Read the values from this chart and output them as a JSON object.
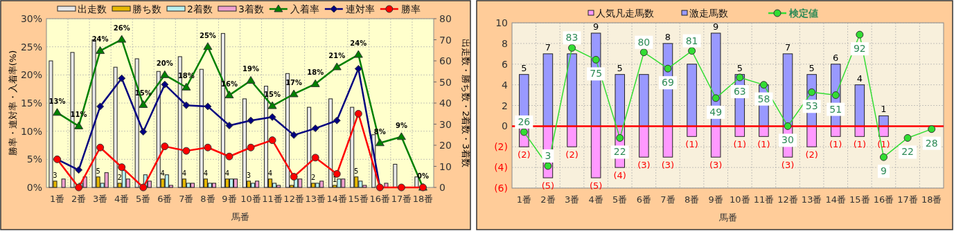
{
  "chart_data": [
    {
      "type": "bar",
      "xlabel": "馬番",
      "ylabel": "勝率・連対率・入着率(%)",
      "y2label": "出走数・勝ち数・2着数・3着数",
      "categories": [
        "1番",
        "2番",
        "3番",
        "4番",
        "5番",
        "6番",
        "7番",
        "8番",
        "9番",
        "10番",
        "11番",
        "12番",
        "13番",
        "14番",
        "15番",
        "16番",
        "17番",
        "18番"
      ],
      "series": [
        {
          "name": "出走数",
          "color": "#e8e8e8",
          "axis": "y2",
          "values": [
            60,
            64,
            70,
            57,
            61,
            55,
            62,
            56,
            73,
            42,
            48,
            54,
            38,
            42,
            38,
            25,
            11,
            5
          ]
        },
        {
          "name": "勝ち数",
          "color": "#e6b800",
          "axis": "y2",
          "values": [
            3,
            0,
            5,
            2,
            0,
            4,
            4,
            4,
            4,
            3,
            4,
            1,
            2,
            1,
            5,
            0,
            0,
            0
          ],
          "value_labels": [
            "3",
            null,
            "5",
            "2",
            null,
            "4",
            "4",
            "4",
            "4",
            "3",
            "4",
            null,
            "2",
            "1",
            "5",
            null,
            null,
            null
          ]
        },
        {
          "name": "2着数",
          "color": "#b8f0f0",
          "axis": "y2",
          "values": [
            0,
            2,
            2,
            8,
            6,
            6,
            2,
            2,
            4,
            2,
            2,
            4,
            2,
            4,
            3,
            0,
            0,
            0
          ]
        },
        {
          "name": "3着数",
          "color": "#f0a0d0",
          "axis": "y2",
          "values": [
            4,
            5,
            7,
            4,
            3,
            1,
            2,
            2,
            4,
            3,
            1,
            4,
            3,
            4,
            1,
            2,
            0,
            0
          ]
        },
        {
          "name": "入着率",
          "type": "line",
          "color": "#008000",
          "marker": "triangle",
          "values": [
            13.3,
            10.9,
            24.3,
            26.3,
            14.7,
            20.0,
            17.8,
            25.0,
            16.4,
            19.0,
            14.5,
            16.6,
            18.4,
            21.4,
            23.6,
            7.9,
            9.0,
            0
          ],
          "value_labels": [
            "13%",
            "11%",
            "24%",
            "26%",
            "15%",
            "20%",
            "18%",
            "25%",
            "16%",
            "19%",
            "15%",
            "17%",
            "18%",
            "21%",
            "24%",
            "8%",
            "9%",
            "0%"
          ]
        },
        {
          "name": "連対率",
          "type": "line",
          "color": "#000080",
          "marker": "diamond",
          "values": [
            5.0,
            3.1,
            14.4,
            19.4,
            9.9,
            18.3,
            14.6,
            14.4,
            11.0,
            11.9,
            12.5,
            9.3,
            10.5,
            11.9,
            21.1,
            0,
            null,
            null
          ]
        },
        {
          "name": "勝率",
          "type": "line",
          "color": "#ff0000",
          "marker": "circle",
          "values": [
            5.0,
            0,
            7.1,
            3.6,
            0,
            7.3,
            6.5,
            7.1,
            5.5,
            7.1,
            8.4,
            1.9,
            5.3,
            2.4,
            13.1,
            0,
            0,
            0
          ]
        }
      ],
      "ylim": [
        0,
        30
      ],
      "yticks": [
        {
          "value": 0,
          "label": "0%"
        },
        {
          "value": 5,
          "label": "5%"
        },
        {
          "value": 10,
          "label": "10%"
        },
        {
          "value": 15,
          "label": "15%"
        },
        {
          "value": 20,
          "label": "20%"
        },
        {
          "value": 25,
          "label": "25%"
        },
        {
          "value": 30,
          "label": "30%"
        }
      ],
      "y2lim": [
        0,
        80
      ],
      "y2ticks": [
        0,
        10,
        20,
        30,
        40,
        50,
        60,
        70,
        80
      ],
      "grid": true,
      "legend": "top"
    },
    {
      "type": "bar",
      "stacked": true,
      "xlabel": "馬番",
      "categories": [
        "1番",
        "2番",
        "3番",
        "4番",
        "5番",
        "6番",
        "7番",
        "8番",
        "9番",
        "10番",
        "11番",
        "12番",
        "13番",
        "14番",
        "15番",
        "16番",
        "17番",
        "18番"
      ],
      "series": [
        {
          "name": "人気凡走馬数",
          "color": "#ff99ff",
          "values": [
            -2,
            -5,
            -2,
            -5,
            -4,
            -3,
            -3,
            -1,
            -3,
            -1,
            -1,
            -3,
            -2,
            -1,
            -1,
            -1,
            0,
            0
          ],
          "value_labels": [
            "(2)",
            "(5)",
            "(2)",
            "(5)",
            "(4)",
            "(3)",
            "(3)",
            "(1)",
            "(3)",
            "(1)",
            "(1)",
            "(3)",
            "(2)",
            "(1)",
            "(1)",
            "(1)",
            null,
            null
          ]
        },
        {
          "name": "激走馬数",
          "color": "#9999ff",
          "values": [
            5,
            7,
            7,
            9,
            5,
            5,
            8,
            6,
            9,
            5,
            4,
            7,
            5,
            6,
            4,
            1,
            0,
            0
          ],
          "value_labels": [
            "5",
            "7",
            null,
            "9",
            "5",
            null,
            "8",
            null,
            "9",
            "5",
            null,
            "7",
            "5",
            "6",
            "4",
            "1",
            null,
            null
          ]
        },
        {
          "name": "検定値",
          "type": "line",
          "axis": "y2",
          "color": "#33dd33",
          "marker": "circle",
          "values": [
            26,
            3,
            83,
            75,
            22,
            80,
            69,
            81,
            49,
            63,
            58,
            30,
            53,
            51,
            92,
            9,
            22,
            28
          ],
          "value_labels": [
            "26",
            "3",
            "83",
            "75",
            "22",
            "80",
            "69",
            "81",
            "49",
            "63",
            "58",
            "30",
            "53",
            "51",
            "92",
            "9",
            "22",
            "28"
          ]
        }
      ],
      "ylim": [
        -6,
        10
      ],
      "yticks": [
        {
          "value": -6,
          "label": "(6)"
        },
        {
          "value": -4,
          "label": "(4)"
        },
        {
          "value": -2,
          "label": "(2)"
        },
        0,
        2,
        4,
        6,
        8,
        10
      ],
      "y2lim": [
        -12,
        100
      ],
      "ref_lines": [
        {
          "axis": "y",
          "value": 0,
          "color": "#ff0000"
        }
      ],
      "grid": true,
      "legend": "top"
    }
  ]
}
